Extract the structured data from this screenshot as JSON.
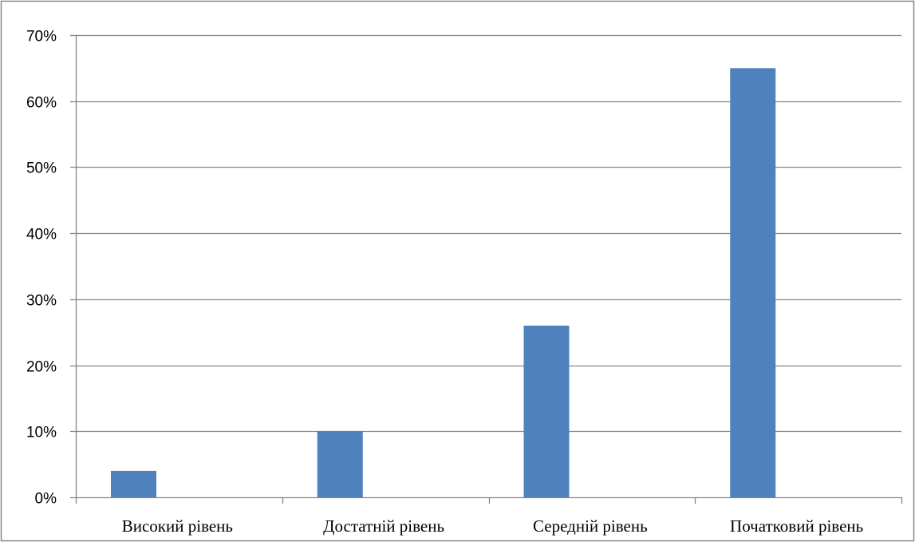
{
  "chart_data": {
    "type": "bar",
    "categories": [
      "Високий рівень",
      "Достатній рівень",
      "Середній рівень",
      "Початковий рівень"
    ],
    "series": [
      {
        "values": [
          4,
          10,
          26,
          65
        ]
      }
    ],
    "ylim": [
      0,
      70
    ],
    "ytick_values": [
      0,
      10,
      20,
      30,
      40,
      50,
      60,
      70
    ],
    "ytick_labels": [
      "0%",
      "10%",
      "20%",
      "30%",
      "40%",
      "50%",
      "60%",
      "70%"
    ],
    "grid": true,
    "legend": "none",
    "bar_color": "#4f81bd",
    "grid_color": "#868686",
    "frame_color": "#868686"
  }
}
